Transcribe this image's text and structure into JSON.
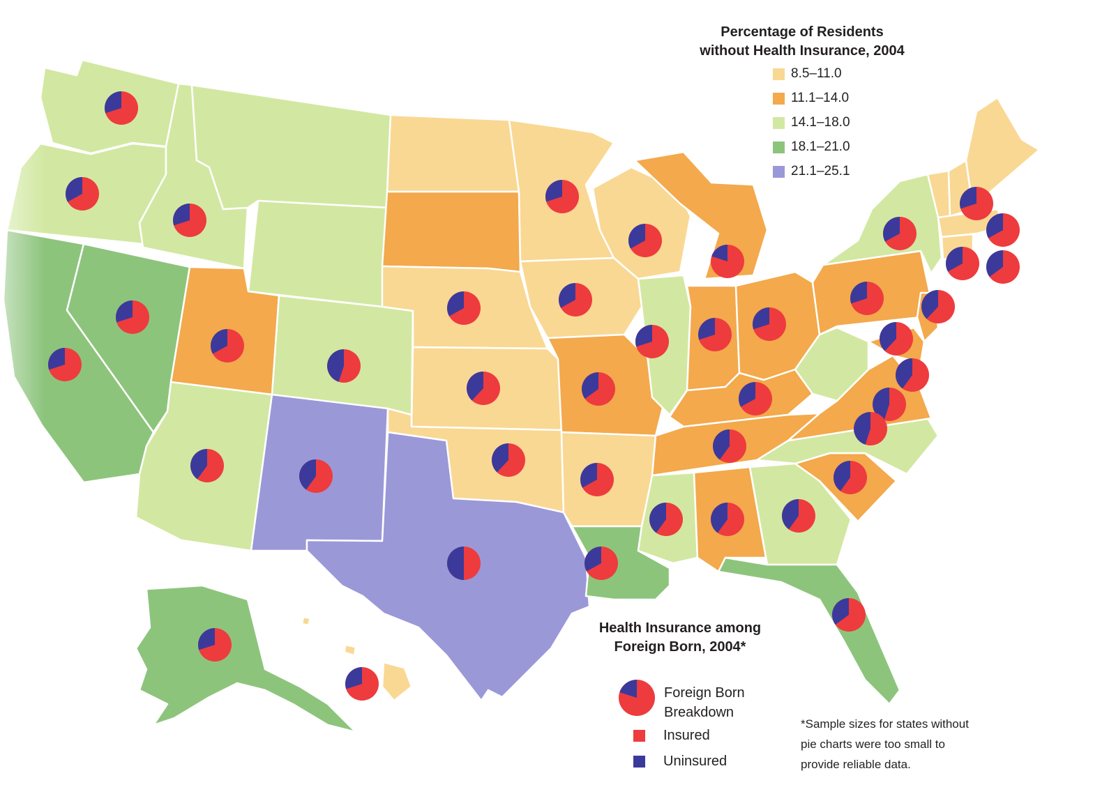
{
  "legend_top": {
    "title_line1": "Percentage of Residents",
    "title_line2": "without Health Insurance, 2004",
    "items": [
      {
        "label": "8.5–11.0",
        "color": "#f9d894"
      },
      {
        "label": "11.1–14.0",
        "color": "#f3a94c"
      },
      {
        "label": "14.1–18.0",
        "color": "#d2e8a2"
      },
      {
        "label": "18.1–21.0",
        "color": "#8dc47c"
      },
      {
        "label": "21.1–25.1",
        "color": "#9b98d8"
      }
    ]
  },
  "legend_bottom": {
    "title_line1": "Health Insurance among",
    "title_line2": "Foreign Born, 2004*",
    "pie_label_line1": "Foreign Born",
    "pie_label_line2": "Breakdown",
    "insured_label": "Insured",
    "insured_color": "#ee3b3e",
    "uninsured_label": "Uninsured",
    "uninsured_color": "#3b3a9b"
  },
  "footnote": {
    "line1": "*Sample sizes for states without",
    "line2": "pie charts were too small to",
    "line3": "provide reliable data."
  }
}
